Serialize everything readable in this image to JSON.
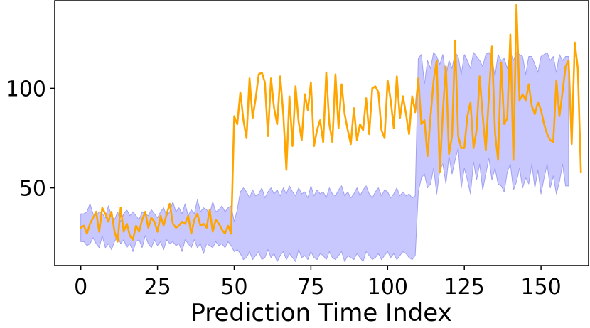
{
  "chart_data": {
    "type": "line",
    "title": "",
    "xlabel": "Prediction Time Index",
    "ylabel": "",
    "xlim": [
      -8.5,
      165.5
    ],
    "ylim": [
      11,
      144
    ],
    "xticks": [
      0,
      25,
      50,
      75,
      100,
      125,
      150
    ],
    "yticks": [
      50,
      100
    ],
    "grid": false,
    "legend": "none",
    "colors": {
      "line": "#ffa500",
      "band_fill": "#c8c8ff",
      "band_edge": "#a0a0f0"
    },
    "band": {
      "x_start": 0,
      "lower": [
        23,
        23,
        21,
        22,
        25,
        22,
        20,
        26,
        20,
        22,
        19,
        23,
        26,
        22,
        24,
        20,
        22,
        18,
        23,
        24,
        20,
        26,
        22,
        20,
        24,
        21,
        23,
        19,
        24,
        22,
        23,
        21,
        22,
        18,
        24,
        22,
        20,
        24,
        20,
        22,
        17,
        22,
        21,
        20,
        23,
        21,
        22,
        20,
        23,
        21,
        18,
        19,
        17,
        14,
        15,
        18,
        14,
        16,
        18,
        14,
        15,
        19,
        15,
        17,
        13,
        16,
        18,
        14,
        17,
        15,
        13,
        19,
        15,
        16,
        14,
        18,
        15,
        14,
        17,
        16,
        14,
        18,
        15,
        14,
        16,
        18,
        13,
        16,
        15,
        14,
        17,
        15,
        13,
        18,
        16,
        14,
        15,
        17,
        14,
        16,
        18,
        15,
        17,
        14,
        16,
        18,
        17,
        15,
        14,
        16,
        48,
        55,
        57,
        50,
        52,
        60,
        47,
        59,
        62,
        52,
        66,
        57,
        64,
        70,
        50,
        60,
        54,
        47,
        63,
        54,
        62,
        49,
        57,
        65,
        54,
        60,
        52,
        51,
        48,
        58,
        62,
        49,
        53,
        60,
        50,
        55,
        52,
        62,
        50,
        59,
        47,
        55,
        62,
        50,
        56,
        47,
        53,
        62,
        51,
        51
      ],
      "upper": [
        37,
        37,
        38,
        42,
        37,
        36,
        38,
        37,
        35,
        41,
        36,
        34,
        38,
        33,
        37,
        39,
        36,
        38,
        36,
        34,
        38,
        37,
        36,
        39,
        37,
        35,
        38,
        40,
        36,
        38,
        43,
        38,
        40,
        37,
        42,
        36,
        39,
        37,
        44,
        38,
        40,
        39,
        37,
        43,
        38,
        39,
        41,
        38,
        40,
        41,
        33,
        39,
        48,
        50,
        48,
        45,
        49,
        46,
        47,
        50,
        45,
        48,
        50,
        47,
        49,
        46,
        50,
        47,
        51,
        48,
        46,
        50,
        47,
        48,
        45,
        51,
        46,
        49,
        47,
        48,
        45,
        50,
        47,
        46,
        49,
        51,
        46,
        48,
        45,
        47,
        50,
        46,
        49,
        51,
        47,
        45,
        48,
        50,
        46,
        49,
        48,
        45,
        47,
        50,
        46,
        48,
        46,
        47,
        45,
        46,
        115,
        117,
        102,
        114,
        110,
        118,
        116,
        112,
        117,
        106,
        114,
        110,
        118,
        116,
        107,
        117,
        114,
        110,
        118,
        116,
        114,
        111,
        117,
        118,
        115,
        106,
        117,
        114,
        115,
        110,
        118,
        114,
        118,
        117,
        116,
        107,
        116,
        116,
        112,
        108,
        116,
        117,
        118,
        114,
        116,
        108,
        117,
        114,
        116,
        116
      ]
    },
    "series": [
      {
        "x_start": 0,
        "values": [
          30,
          31,
          27,
          32,
          35,
          38,
          28,
          40,
          37,
          33,
          38,
          28,
          23,
          40,
          28,
          32,
          26,
          24,
          31,
          28,
          34,
          38,
          30,
          35,
          33,
          28,
          36,
          31,
          37,
          42,
          32,
          30,
          31,
          33,
          32,
          36,
          27,
          34,
          37,
          31,
          32,
          30,
          39,
          28,
          34,
          32,
          29,
          27,
          31,
          27,
          86,
          82,
          98,
          84,
          75,
          105,
          85,
          95,
          107,
          108,
          103,
          76,
          105,
          90,
          82,
          106,
          87,
          59,
          96,
          71,
          101,
          83,
          74,
          97,
          89,
          103,
          71,
          79,
          84,
          73,
          108,
          82,
          73,
          107,
          80,
          102,
          87,
          79,
          72,
          90,
          74,
          82,
          79,
          95,
          77,
          100,
          101,
          98,
          79,
          75,
          104,
          94,
          80,
          106,
          85,
          96,
          87,
          77,
          96,
          88,
          105,
          82,
          84,
          66,
          86,
          104,
          114,
          58,
          88,
          111,
          67,
          76,
          124,
          76,
          70,
          70,
          86,
          93,
          70,
          79,
          106,
          86,
          69,
          96,
          121,
          78,
          64,
          113,
          82,
          85,
          127,
          64,
          142,
          94,
          97,
          94,
          102,
          91,
          87,
          93,
          89,
          82,
          77,
          74,
          73,
          104,
          86,
          98,
          111,
          114,
          72,
          123,
          110,
          58
        ]
      }
    ]
  }
}
